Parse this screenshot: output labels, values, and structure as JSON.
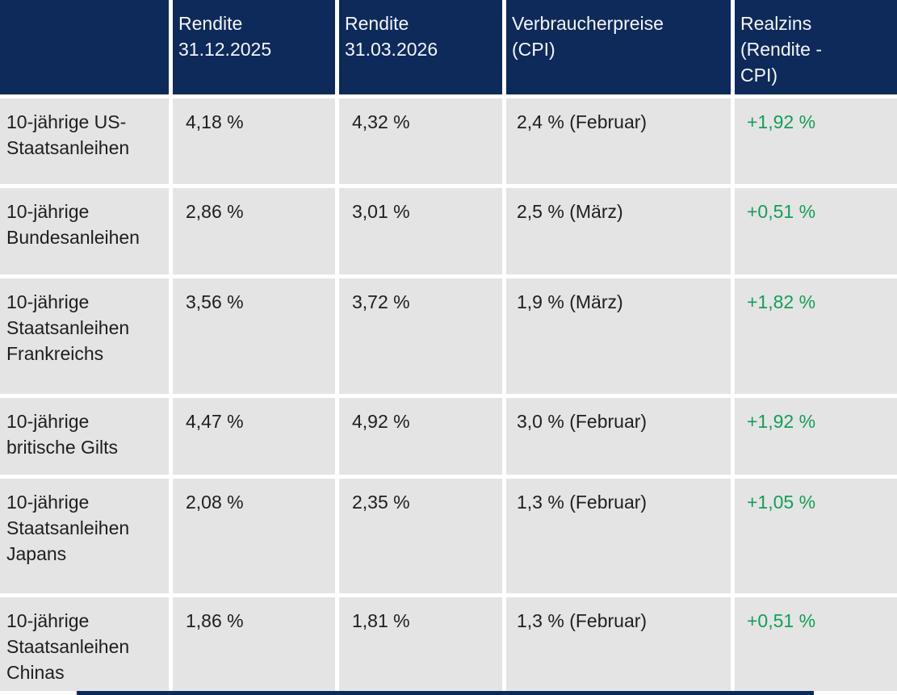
{
  "chart_data": {
    "type": "table",
    "title": "",
    "columns": [
      "",
      "Rendite 31.12.2025",
      "Rendite 31.03.2026",
      "Verbraucherpreise (CPI)",
      "Realzins (Rendite - CPI)"
    ],
    "rows": [
      [
        "10-jährige US-Staatsanleihen",
        "4,18 %",
        "4,32 %",
        "2,4 % (Februar)",
        "+1,92 %"
      ],
      [
        "10-jährige Bundesanleihen",
        "2,86 %",
        "3,01 %",
        "2,5 % (März)",
        "+0,51 %"
      ],
      [
        "10-jährige Staatsanleihen Frankreichs",
        "3,56 %",
        "3,72 %",
        "1,9 % (März)",
        "+1,82 %"
      ],
      [
        "10-jährige britische Gilts",
        "4,47 %",
        "4,92 %",
        "3,0 % (Februar)",
        "+1,92 %"
      ],
      [
        "10-jährige Staatsanleihen Japans",
        "2,08 %",
        "2,35 %",
        "1,3 % (Februar)",
        "+1,05 %"
      ],
      [
        "10-jährige Staatsanleihen Chinas",
        "1,86 %",
        "1,81 %",
        "1,3 % (Februar)",
        "+0,51 %"
      ]
    ]
  },
  "table": {
    "headers": {
      "col1": "",
      "col2": "Rendite\n31.12.2025",
      "col3": "Rendite\n31.03.2026",
      "col4": "Verbraucherpreise\n(CPI)",
      "col5": "Realzins\n(Rendite -\nCPI)"
    },
    "rows": [
      {
        "label": "10-jährige US-Staatsanleihen",
        "rendite_2025": "4,18 %",
        "rendite_2026": "4,32 %",
        "cpi": "2,4 % (Februar)",
        "realzins": "+1,92 %"
      },
      {
        "label": "10-jährige Bundesanleihen",
        "rendite_2025": "2,86 %",
        "rendite_2026": "3,01 %",
        "cpi": "2,5 % (März)",
        "realzins": "+0,51 %"
      },
      {
        "label": "10-jährige Staatsanleihen Frankreichs",
        "rendite_2025": "3,56 %",
        "rendite_2026": "3,72 %",
        "cpi": "1,9 % (März)",
        "realzins": "+1,82 %"
      },
      {
        "label": "10-jährige britische Gilts",
        "rendite_2025": "4,47 %",
        "rendite_2026": "4,92 %",
        "cpi": "3,0 % (Februar)",
        "realzins": "+1,92 %"
      },
      {
        "label": "10-jährige Staatsanleihen Japans",
        "rendite_2025": "2,08 %",
        "rendite_2026": "2,35 %",
        "cpi": "1,3 % (Februar)",
        "realzins": "+1,05 %"
      },
      {
        "label": "10-jährige Staatsanleihen Chinas",
        "rendite_2025": "1,86 %",
        "rendite_2026": "1,81 %",
        "cpi": "1,3 % (Februar)",
        "realzins": "+0,51 %"
      }
    ]
  },
  "colors": {
    "header_bg": "#0e2a5b",
    "header_text": "#f4f6f9",
    "row_bg": "#e4e4e4",
    "body_text": "#1e1e1e",
    "positive_green": "#10a058"
  }
}
